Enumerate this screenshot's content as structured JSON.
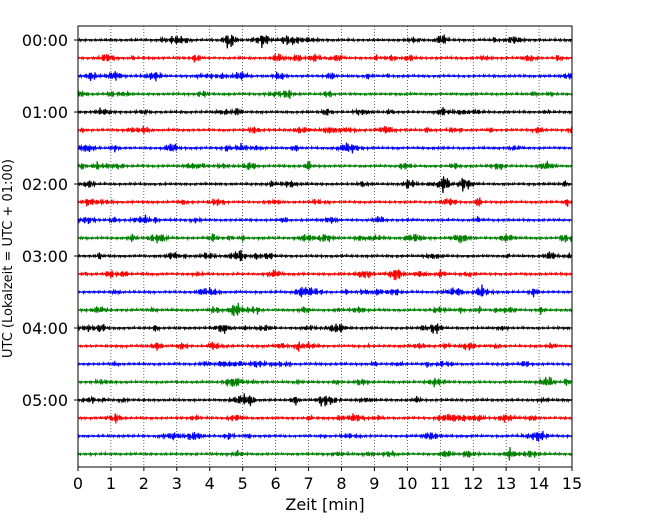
{
  "chart_data": {
    "type": "line",
    "chart_kind": "seismogram helicorder (stacked traces)",
    "xlabel": "Zeit  [min]",
    "ylabel": "UTC (Lokalzeit = UTC + 01:00)",
    "x_ticks": [
      0,
      1,
      2,
      3,
      4,
      5,
      6,
      7,
      8,
      9,
      10,
      11,
      12,
      13,
      14,
      15
    ],
    "xlim": [
      0,
      15
    ],
    "y_tick_labels": [
      "00:00",
      "01:00",
      "02:00",
      "03:00",
      "04:00",
      "05:00"
    ],
    "trace_interval_min": 15,
    "trace_count": 24,
    "trace_color_cycle": [
      "#000000",
      "#ff0000",
      "#0000ff",
      "#008000"
    ],
    "grid": "vertical dotted lines at each minute",
    "series": [
      {
        "start": "00:00",
        "color": "#000000"
      },
      {
        "start": "00:15",
        "color": "#ff0000"
      },
      {
        "start": "00:30",
        "color": "#0000ff"
      },
      {
        "start": "00:45",
        "color": "#008000"
      },
      {
        "start": "01:00",
        "color": "#000000"
      },
      {
        "start": "01:15",
        "color": "#ff0000"
      },
      {
        "start": "01:30",
        "color": "#0000ff"
      },
      {
        "start": "01:45",
        "color": "#008000"
      },
      {
        "start": "02:00",
        "color": "#000000"
      },
      {
        "start": "02:15",
        "color": "#ff0000"
      },
      {
        "start": "02:30",
        "color": "#0000ff"
      },
      {
        "start": "02:45",
        "color": "#008000"
      },
      {
        "start": "03:00",
        "color": "#000000"
      },
      {
        "start": "03:15",
        "color": "#ff0000"
      },
      {
        "start": "03:30",
        "color": "#0000ff"
      },
      {
        "start": "03:45",
        "color": "#008000"
      },
      {
        "start": "04:00",
        "color": "#000000"
      },
      {
        "start": "04:15",
        "color": "#ff0000"
      },
      {
        "start": "04:30",
        "color": "#0000ff"
      },
      {
        "start": "04:45",
        "color": "#008000"
      },
      {
        "start": "05:00",
        "color": "#000000"
      },
      {
        "start": "05:15",
        "color": "#ff0000"
      },
      {
        "start": "05:30",
        "color": "#0000ff"
      },
      {
        "start": "05:45",
        "color": "#008000"
      }
    ]
  }
}
